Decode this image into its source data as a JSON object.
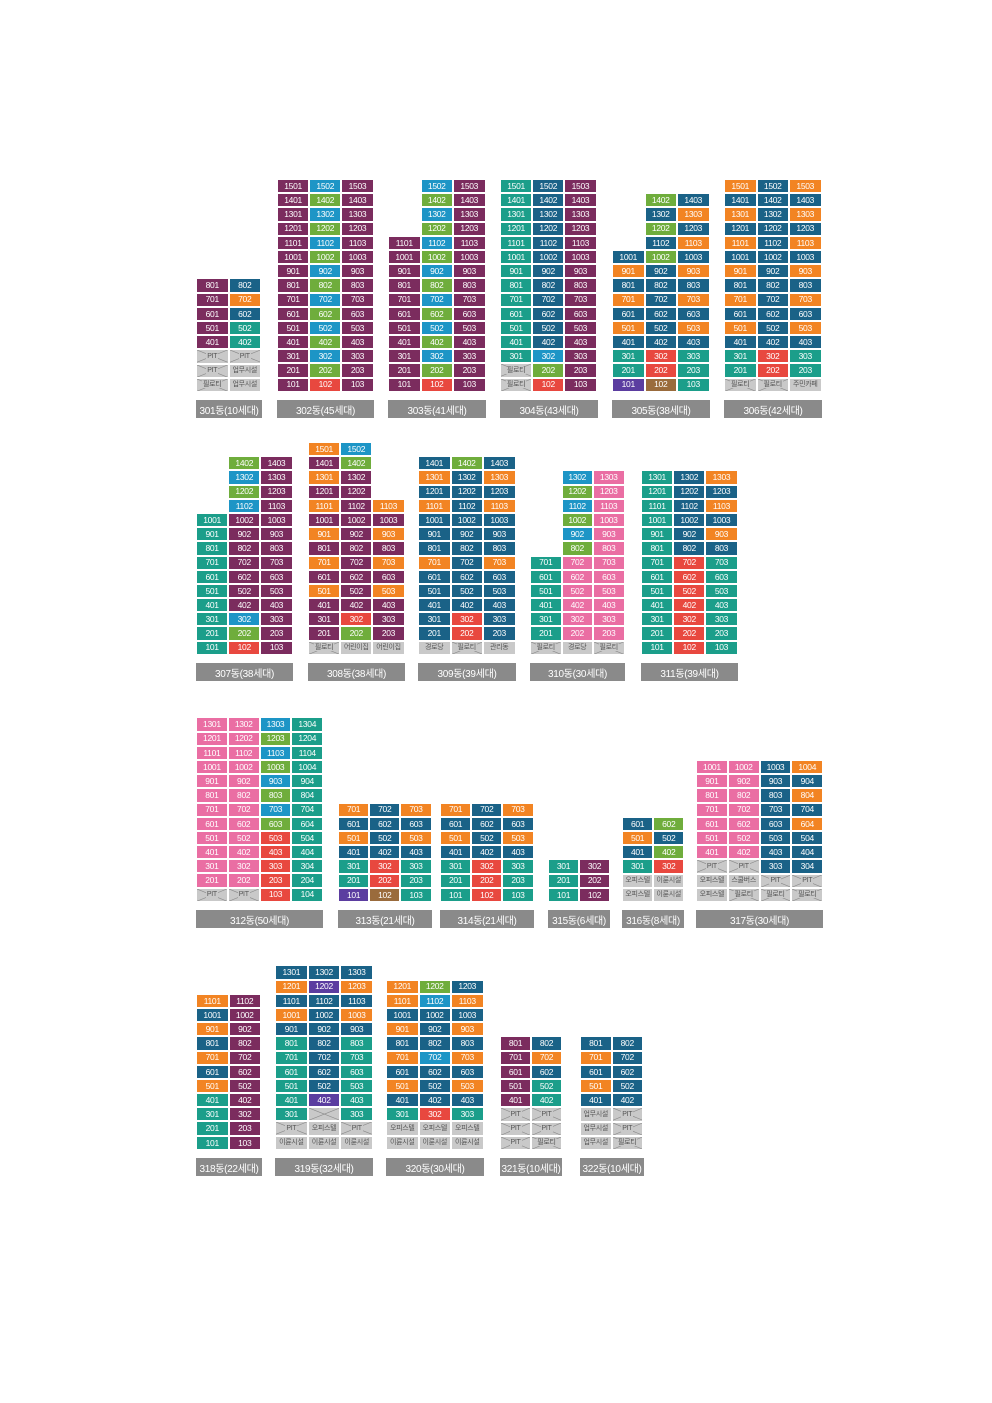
{
  "colors": {
    "P": "#7b2c5e",
    "B": "#1d95c6",
    "G": "#6fad3c",
    "T": "#1b9e8a",
    "O": "#f28423",
    "N": "#1a6287",
    "K": "#ea6ea3",
    "R": "#e8483f",
    "V": "#5b3da0",
    "W": "#9a6b3c"
  },
  "buildings": [
    {
      "label": "301동(10세대)",
      "cols": 2,
      "rows": [
        "801:P 802:N",
        "701:P 702:O",
        "601:P 602:N",
        "501:P 502:T",
        "401:P 402:T",
        "X:PIT X:PIT",
        "X:PIT F:업무시설",
        "X:필로티 F:업무시설"
      ]
    },
    {
      "label": "302동(45세대)",
      "cols": 3,
      "rows": [
        "1501:P 1502:B 1503:P",
        "1401:P 1402:G 1403:P",
        "1301:P 1302:B 1303:P",
        "1201:P 1202:G 1203:P",
        "1101:P 1102:B 1103:P",
        "1001:P 1002:G 1003:P",
        "901:P 902:B 903:P",
        "801:P 802:G 803:P",
        "701:P 702:B 703:P",
        "601:P 602:G 603:P",
        "501:P 502:B 503:P",
        "401:P 402:G 403:P",
        "301:P 302:B 303:P",
        "201:P 202:G 203:P",
        "101:P 102:R 103:P"
      ]
    },
    {
      "label": "303동(41세대)",
      "cols": 3,
      "rows": [
        "- 1502:B 1503:P",
        "- 1402:G 1403:P",
        "- 1302:B 1303:P",
        "- 1202:G 1203:P",
        "1101:P 1102:B 1103:P",
        "1001:P 1002:G 1003:P",
        "901:P 902:B 903:P",
        "801:P 802:G 803:P",
        "701:P 702:B 703:P",
        "601:P 602:G 603:P",
        "501:P 502:B 503:P",
        "401:P 402:G 403:P",
        "301:P 302:B 303:P",
        "201:P 202:G 203:P",
        "101:P 102:R 103:P"
      ]
    },
    {
      "label": "304동(43세대)",
      "cols": 3,
      "rows": [
        "1501:T 1502:N 1503:P",
        "1401:T 1402:N 1403:P",
        "1301:T 1302:N 1303:P",
        "1201:T 1202:N 1203:P",
        "1101:T 1102:N 1103:P",
        "1001:T 1002:N 1003:P",
        "901:T 902:N 903:P",
        "801:T 802:N 803:P",
        "701:T 702:N 703:P",
        "601:T 602:N 603:P",
        "501:T 502:N 503:P",
        "401:T 402:N 403:P",
        "301:T 302:B 303:P",
        "X:필로티 202:G 203:P",
        "X:필로티 102:R 103:P"
      ]
    },
    {
      "label": "305동(38세대)",
      "cols": 3,
      "rows": [
        "- 1402:G 1403:N",
        "- 1302:N 1303:O",
        "- 1202:G 1203:N",
        "- 1102:N 1103:O",
        "1001:N 1002:G 1003:N",
        "901:O 902:N 903:O",
        "801:N 802:N 803:N",
        "701:O 702:N 703:O",
        "601:N 602:N 603:N",
        "501:O 502:N 503:O",
        "401:N 402:N 403:N",
        "301:T 302:R 303:T",
        "201:T 202:R 203:T",
        "101:V 102:W 103:T"
      ]
    },
    {
      "label": "306동(42세대)",
      "cols": 3,
      "rows": [
        "1501:O 1502:N 1503:O",
        "1401:N 1402:N 1403:N",
        "1301:O 1302:N 1303:O",
        "1201:N 1202:N 1203:N",
        "1101:O 1102:N 1103:O",
        "1001:N 1002:N 1003:N",
        "901:O 902:N 903:O",
        "801:N 802:N 803:N",
        "701:O 702:N 703:O",
        "601:N 602:N 603:N",
        "501:O 502:N 503:O",
        "401:N 402:N 403:N",
        "301:T 302:R 303:T",
        "201:T 202:R 203:T",
        "X:필로티 X:필로티 F:주민카페"
      ]
    },
    {
      "label": "307동(38세대)",
      "cols": 3,
      "rows": [
        "- 1402:G 1403:P",
        "- 1302:B 1303:P",
        "- 1202:G 1203:P",
        "- 1102:B 1103:P",
        "1001:T 1002:P 1003:P",
        "901:T 902:P 903:P",
        "801:T 802:P 803:P",
        "701:T 702:P 703:P",
        "601:T 602:P 603:P",
        "501:T 502:P 503:P",
        "401:T 402:P 403:P",
        "301:T 302:B 303:P",
        "201:T 202:G 203:P",
        "101:T 102:R 103:P"
      ]
    },
    {
      "label": "308동(38세대)",
      "cols": 3,
      "rows": [
        "1501:O 1502:B -",
        "1401:P 1402:G -",
        "1301:O 1302:P -",
        "1201:P 1202:P -",
        "1101:O 1102:P 1103:O",
        "1001:P 1002:P 1003:P",
        "901:O 902:P 903:O",
        "801:P 802:P 803:P",
        "701:O 702:P 703:O",
        "601:P 602:P 603:P",
        "501:O 502:P 503:O",
        "401:P 402:P 403:P",
        "301:P 302:R 303:P",
        "201:P 202:G 203:P",
        "X:필로티 F:어린이집 F:어린이집"
      ]
    },
    {
      "label": "309동(39세대)",
      "cols": 3,
      "rows": [
        "1401:N 1402:G 1403:N",
        "1301:O 1302:N 1303:O",
        "1201:N 1202:N 1203:N",
        "1101:O 1102:N 1103:O",
        "1001:N 1002:N 1003:N",
        "901:N 902:N 903:N",
        "801:N 802:N 803:N",
        "701:O 702:N 703:O",
        "601:N 602:N 603:N",
        "501:N 502:N 503:N",
        "401:N 402:N 403:N",
        "301:N 302:R 303:N",
        "201:N 202:R 203:N",
        "F:경로당 X:필로티 F:관리동"
      ]
    },
    {
      "label": "310동(30세대)",
      "cols": 3,
      "rows": [
        "- 1302:B 1303:K",
        "- 1202:G 1203:K",
        "- 1102:B 1103:K",
        "- 1002:G 1003:K",
        "- 902:B 903:K",
        "- 802:G 803:K",
        "701:T 702:K 703:K",
        "601:T 602:K 603:K",
        "501:T 502:K 503:K",
        "401:T 402:K 403:K",
        "301:T 302:K 303:K",
        "201:T 202:K 203:K",
        "X:필로티 F:경로당 X:필로티"
      ]
    },
    {
      "label": "311동(39세대)",
      "cols": 3,
      "rows": [
        "1301:T 1302:N 1303:O",
        "1201:T 1202:N 1203:N",
        "1101:T 1102:N 1103:O",
        "1001:T 1002:N 1003:N",
        "901:T 902:N 903:O",
        "801:T 802:N 803:N",
        "701:T 702:R 703:T",
        "601:T 602:R 603:T",
        "501:T 502:R 503:T",
        "401:T 402:R 403:T",
        "301:T 302:R 303:T",
        "201:T 202:R 203:T",
        "101:T 102:R 103:T"
      ]
    },
    {
      "label": "312동(50세대)",
      "cols": 4,
      "rows": [
        "1301:K 1302:K 1303:B 1304:T",
        "1201:K 1202:K 1203:G 1204:T",
        "1101:K 1102:K 1103:B 1104:T",
        "1001:K 1002:K 1003:G 1004:T",
        "901:K 902:K 903:B 904:T",
        "801:K 802:K 803:G 804:T",
        "701:K 702:K 703:B 704:T",
        "601:K 602:K 603:G 604:T",
        "501:K 502:K 503:R 504:T",
        "401:K 402:K 403:R 404:T",
        "301:K 302:K 303:R 304:T",
        "201:K 202:K 203:R 204:T",
        "X:PIT X:PIT 103:R 104:T"
      ]
    },
    {
      "label": "313동(21세대)",
      "cols": 3,
      "rows": [
        "701:O 702:N 703:O",
        "601:N 602:N 603:N",
        "501:O 502:N 503:O",
        "401:N 402:N 403:N",
        "301:T 302:R 303:T",
        "201:T 202:R 203:T",
        "101:V 102:W 103:T"
      ]
    },
    {
      "label": "314동(21세대)",
      "cols": 3,
      "rows": [
        "701:O 702:N 703:O",
        "601:N 602:N 603:N",
        "501:O 502:N 503:O",
        "401:N 402:N 403:N",
        "301:T 302:R 303:T",
        "201:T 202:R 203:T",
        "101:T 102:R 103:T"
      ]
    },
    {
      "label": "315동(6세대)",
      "cols": 2,
      "rows": [
        "301:T 302:P",
        "201:T 202:P",
        "101:T 102:P"
      ]
    },
    {
      "label": "316동(8세대)",
      "cols": 2,
      "rows": [
        "601:N 602:G",
        "501:O 502:N",
        "401:N 402:G",
        "301:T 302:R",
        "F:오피스텔 F:이륜시설",
        "F:오피스텔 F:이륜시설"
      ]
    },
    {
      "label": "317동(30세대)",
      "cols": 4,
      "rows": [
        "1001:K 1002:K 1003:N 1004:O",
        "901:K 902:K 903:N 904:N",
        "801:K 802:K 803:N 804:O",
        "701:K 702:K 703:N 704:N",
        "601:K 602:K 603:N 604:O",
        "501:K 502:K 503:N 504:N",
        "401:K 402:K 403:N 404:N",
        "X:PIT X:PIT 303:N 304:N",
        "F:오피스텔 F:스쿨버스 X:PIT X:PIT",
        "F:오피스텔 X:필로티 X:필로티 X:필로티"
      ]
    },
    {
      "label": "318동(22세대)",
      "cols": 2,
      "rows": [
        "1101:O 1102:P",
        "1001:N 1002:P",
        "901:O 902:P",
        "801:N 802:P",
        "701:O 702:P",
        "601:N 602:P",
        "501:O 502:P",
        "401:T 402:P",
        "301:T 302:P",
        "201:T 203:P",
        "101:T 103:P"
      ]
    },
    {
      "label": "319동(32세대)",
      "cols": 3,
      "rows": [
        "1301:N 1302:N 1303:N",
        "1201:O 1202:V 1203:O",
        "1101:N 1102:N 1103:N",
        "1001:O 1002:N 1003:O",
        "901:N 902:N 903:N",
        "801:T 802:N 803:T",
        "701:T 702:N 703:T",
        "601:T 602:N 603:T",
        "501:T 502:N 503:T",
        "401:T 402:V 403:T",
        "301:T X: 303:T",
        "X:PIT F:오피스텔 X:PIT",
        "F:이륜시설 F:이륜시설 F:이륜시설"
      ]
    },
    {
      "label": "320동(30세대)",
      "cols": 3,
      "rows": [
        "1201:O 1202:G 1203:N",
        "1101:O 1102:B 1103:O",
        "1001:N 1002:N 1003:N",
        "901:O 902:N 903:O",
        "801:N 802:N 803:N",
        "701:O 702:B 703:O",
        "601:N 602:N 603:N",
        "501:O 502:N 503:O",
        "401:N 402:N 403:N",
        "301:T 302:R 303:T",
        "F:오피스텔 F:오피스텔 F:오피스텔",
        "F:이륜시설 F:이륜시설 F:이륜시설"
      ]
    },
    {
      "label": "321동(10세대)",
      "cols": 2,
      "rows": [
        "801:P 802:N",
        "701:P 702:O",
        "601:P 602:N",
        "501:P 502:T",
        "401:P 402:T",
        "X:PIT X:PIT",
        "X:PIT X:PIT",
        "X:PIT X:필로티"
      ]
    },
    {
      "label": "322동(10세대)",
      "cols": 2,
      "rows": [
        "801:N 802:N",
        "701:O 702:N",
        "601:N 602:N",
        "501:O 502:N",
        "401:N 402:N",
        "F:업무시설 X:PIT",
        "F:업무시설 X:PIT",
        "F:업무시설 X:필로티"
      ]
    }
  ]
}
